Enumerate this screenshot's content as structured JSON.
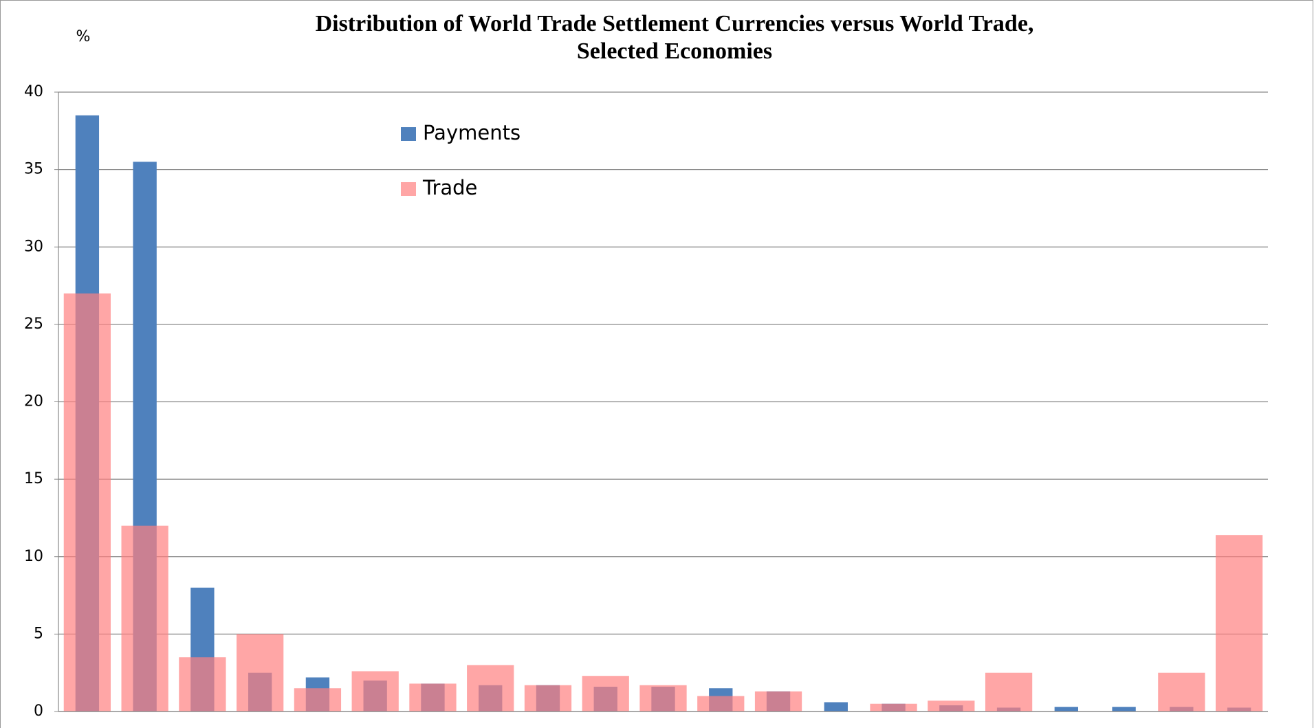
{
  "chart_data": {
    "type": "bar",
    "title": [
      "Distribution of World Trade Settlement Currencies versus World Trade,",
      "Selected Economies"
    ],
    "y_label": "%",
    "categories": [
      null,
      null,
      null,
      null,
      null,
      null,
      null,
      null,
      null,
      null,
      null,
      null,
      null,
      null,
      null,
      null,
      null,
      null,
      null,
      null,
      null
    ],
    "series": [
      {
        "name": "Payments",
        "color": "#4f81bd",
        "opacity": 1,
        "width": 0.41,
        "values": [
          38.5,
          35.5,
          8,
          2.5,
          2.2,
          2,
          1.8,
          1.7,
          1.7,
          1.6,
          1.6,
          1.5,
          1.3,
          0.6,
          0.5,
          0.4,
          0.25,
          0.3,
          0.3,
          0.3,
          0.25
        ]
      },
      {
        "name": "Trade",
        "color": "#ff8080",
        "opacity": 0.7,
        "width": 0.815,
        "values": [
          27,
          12,
          3.5,
          5,
          1.5,
          2.6,
          1.8,
          3,
          1.7,
          2.3,
          1.7,
          1,
          1.3,
          0,
          0.5,
          0.7,
          2.5,
          0,
          0,
          2.5,
          11.4
        ]
      }
    ],
    "ylim": [
      0,
      40
    ],
    "yticks": [
      0,
      5,
      10,
      15,
      20,
      25,
      30,
      35,
      40
    ],
    "grid": true,
    "legend": "top"
  }
}
